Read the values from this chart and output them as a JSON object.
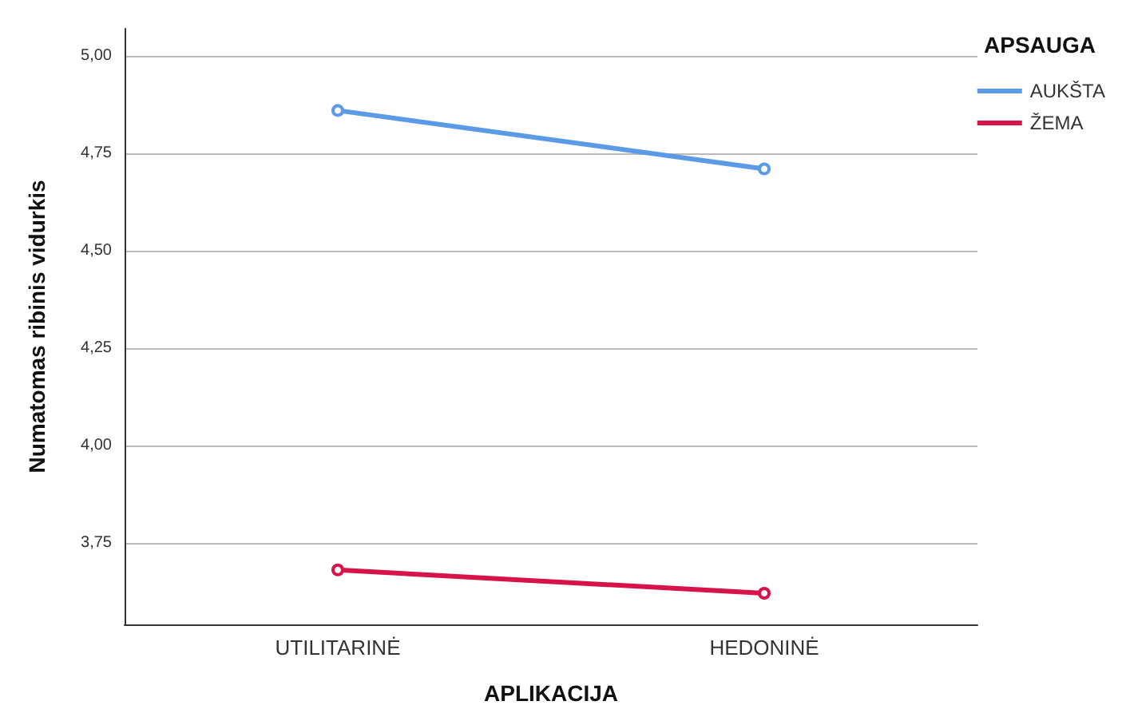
{
  "chart_data": {
    "type": "line",
    "xlabel": "APLIKACIJA",
    "ylabel": "Numatomas ribinis vidurkis",
    "legend_title": "APSAUGA",
    "categories": [
      "UTILITARINĖ",
      "HEDONINĖ"
    ],
    "series": [
      {
        "name": "AUKŠTA",
        "color": "#5b9be6",
        "values": [
          4.86,
          4.71
        ]
      },
      {
        "name": "ŽEMA",
        "color": "#d6144a",
        "values": [
          3.68,
          3.62
        ]
      }
    ],
    "ylim": [
      3.54,
      5.07
    ],
    "yticks": [
      {
        "value": 3.75,
        "label": "3,75"
      },
      {
        "value": 4,
        "label": "4,00"
      },
      {
        "value": 4.25,
        "label": "4,25"
      },
      {
        "value": 4.5,
        "label": "4,50"
      },
      {
        "value": 4.75,
        "label": "4,75"
      },
      {
        "value": 5,
        "label": "5,00"
      }
    ],
    "grid": "y",
    "legend": "top right",
    "marker": "circle",
    "line_style": "solid"
  }
}
